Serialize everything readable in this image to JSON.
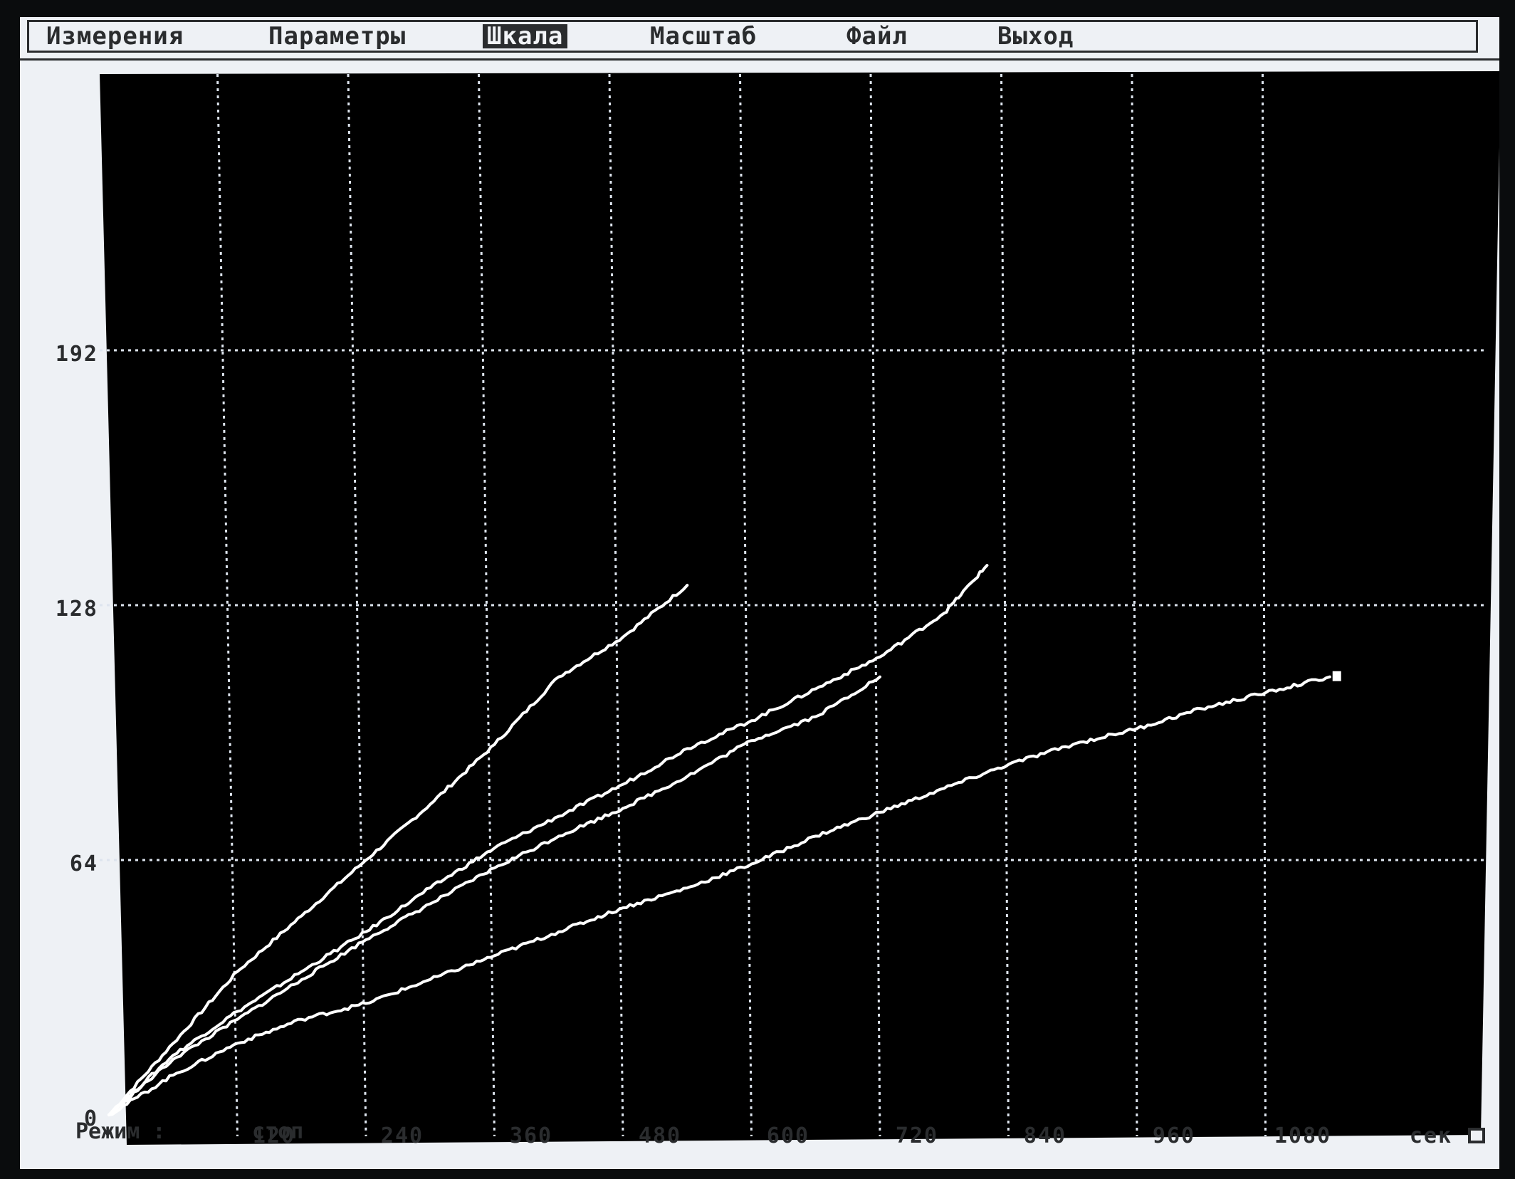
{
  "menu": {
    "items": [
      {
        "label": "Измерения"
      },
      {
        "label": "Параметры"
      },
      {
        "label": "Шкала"
      },
      {
        "label": "Масштаб"
      },
      {
        "label": "Файл"
      },
      {
        "label": "Выход"
      }
    ],
    "active": "Шкала"
  },
  "status": {
    "label": "Режим :",
    "value": "стоп"
  },
  "colors": {
    "screen_bg": "#eef1f5",
    "plot_bg": "#000000",
    "grid": "#dde4ee",
    "trace": "#ffffff",
    "text": "#2a2c2e"
  },
  "chart_data": {
    "type": "line",
    "x_ticks": [
      "120",
      "240",
      "360",
      "480",
      "600",
      "720",
      "840",
      "960",
      "1080"
    ],
    "y_ticks": [
      "0",
      "64",
      "128",
      "192"
    ],
    "x_unit": "сек",
    "xlim": [
      0,
      1230
    ],
    "ylim": [
      0,
      256
    ],
    "grid": true,
    "series": [
      {
        "x": [
          0,
          60,
          120,
          180,
          240,
          300,
          360,
          420,
          480,
          540
        ],
        "y": [
          0,
          18,
          36,
          50,
          64,
          78,
          93,
          110,
          120,
          133
        ]
      },
      {
        "x": [
          0,
          60,
          120,
          180,
          240,
          300,
          360,
          420,
          480,
          540,
          600,
          660,
          720,
          780,
          820
        ],
        "y": [
          0,
          15,
          26,
          36,
          46,
          57,
          67,
          75,
          83,
          92,
          99,
          107,
          115,
          126,
          138
        ]
      },
      {
        "x": [
          0,
          60,
          120,
          180,
          240,
          300,
          360,
          420,
          480,
          540,
          600,
          660,
          720
        ],
        "y": [
          0,
          14,
          24,
          34,
          44,
          53,
          62,
          70,
          77,
          85,
          94,
          100,
          110
        ]
      },
      {
        "x": [
          0,
          60,
          120,
          180,
          240,
          300,
          360,
          420,
          480,
          540,
          600,
          660,
          720,
          780,
          840,
          900,
          960,
          1020,
          1080,
          1140
        ],
        "y": [
          0,
          10,
          18,
          24,
          28,
          34,
          40,
          46,
          52,
          57,
          63,
          70,
          76,
          82,
          88,
          93,
          97,
          102,
          106,
          110
        ]
      }
    ]
  }
}
